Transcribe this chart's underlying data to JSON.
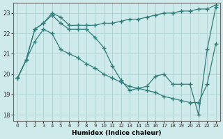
{
  "xlabel": "Humidex (Indice chaleur)",
  "background_color": "#ceeaea",
  "grid_color": "#afd4d4",
  "line_color": "#2d7d78",
  "xlim": [
    -0.5,
    23.5
  ],
  "ylim": [
    17.7,
    23.5
  ],
  "yticks": [
    18,
    19,
    20,
    21,
    22,
    23
  ],
  "xticks": [
    0,
    1,
    2,
    3,
    4,
    5,
    6,
    7,
    8,
    9,
    10,
    11,
    12,
    13,
    14,
    15,
    16,
    17,
    18,
    19,
    20,
    21,
    22,
    23
  ],
  "line1_x": [
    0,
    1,
    2,
    3,
    4,
    5,
    6,
    7,
    8,
    9,
    10,
    11,
    12,
    13,
    14,
    15,
    16,
    17,
    18,
    19,
    20,
    21,
    22,
    23
  ],
  "line1_y": [
    19.8,
    20.7,
    22.2,
    22.5,
    23.0,
    22.8,
    22.4,
    22.4,
    22.4,
    22.4,
    22.5,
    22.5,
    22.6,
    22.7,
    22.7,
    22.8,
    22.9,
    23.0,
    23.0,
    23.1,
    23.1,
    23.2,
    23.2,
    23.4
  ],
  "line2_x": [
    0,
    1,
    2,
    3,
    4,
    5,
    6,
    7,
    8,
    9,
    10,
    11,
    12,
    13,
    14,
    15,
    16,
    17,
    18,
    19,
    20,
    21,
    22,
    23
  ],
  "line2_y": [
    19.8,
    20.7,
    22.2,
    22.5,
    22.9,
    22.5,
    22.2,
    22.2,
    22.2,
    21.8,
    21.3,
    20.4,
    19.7,
    19.2,
    19.3,
    19.4,
    19.9,
    20.0,
    19.5,
    19.5,
    19.5,
    18.0,
    21.2,
    23.3
  ],
  "line3_x": [
    0,
    1,
    2,
    3,
    4,
    5,
    6,
    7,
    8,
    9,
    10,
    11,
    12,
    13,
    14,
    15,
    16,
    17,
    18,
    19,
    20,
    21,
    22,
    23
  ],
  "line3_y": [
    19.8,
    20.7,
    21.6,
    22.2,
    22.0,
    21.2,
    21.0,
    20.8,
    20.5,
    20.3,
    20.0,
    19.8,
    19.6,
    19.4,
    19.3,
    19.2,
    19.1,
    18.9,
    18.8,
    18.7,
    18.6,
    18.6,
    19.5,
    21.5
  ]
}
